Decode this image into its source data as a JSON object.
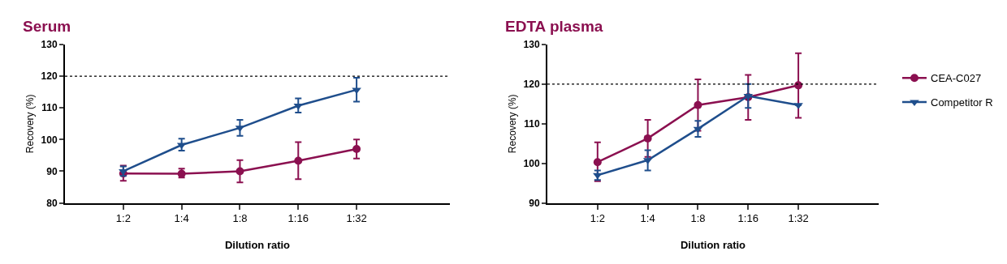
{
  "chart_data": [
    {
      "type": "line",
      "title": "Serum",
      "xlabel": "Dilution ratio",
      "ylabel": "Recovery (%)",
      "categories": [
        "1:2",
        "1:4",
        "1:8",
        "1:16",
        "1:32"
      ],
      "ylim": [
        80,
        130
      ],
      "yticks": [
        80,
        90,
        100,
        110,
        120,
        130
      ],
      "grid": false,
      "legend": false,
      "line_style": "solid",
      "ref_lines": [
        {
          "axis": "y",
          "value": 120,
          "color": "#000000",
          "line_style": "dotted"
        }
      ],
      "series": [
        {
          "color": "#8b1050",
          "marker": "circle",
          "values": [
            89.3,
            89.2,
            90.0,
            93.3,
            97.0
          ],
          "errors": [
            [
              87.0,
              91.8
            ],
            [
              88.0,
              90.8
            ],
            [
              86.5,
              93.5
            ],
            [
              87.5,
              99.2
            ],
            [
              94.0,
              100.0
            ]
          ]
        },
        {
          "color": "#1f4e8c",
          "marker": "triangle",
          "values": [
            90.0,
            98.3,
            103.7,
            110.7,
            115.7
          ],
          "errors": [
            [
              88.5,
              91.5
            ],
            [
              96.5,
              100.3
            ],
            [
              101.2,
              106.2
            ],
            [
              108.5,
              113.0
            ],
            [
              112.0,
              119.5
            ]
          ]
        }
      ]
    },
    {
      "type": "line",
      "title": "EDTA plasma",
      "xlabel": "Dilution ratio",
      "ylabel": "Recovery (%)",
      "categories": [
        "1:2",
        "1:4",
        "1:8",
        "1:16",
        "1:32"
      ],
      "ylim": [
        90,
        130
      ],
      "yticks": [
        90,
        100,
        110,
        120,
        130
      ],
      "grid": false,
      "legend": "right",
      "line_style": "solid",
      "ref_lines": [
        {
          "axis": "y",
          "value": 120,
          "color": "#000000",
          "line_style": "dotted"
        }
      ],
      "series": [
        {
          "name": "CEA-C027",
          "color": "#8b1050",
          "marker": "circle",
          "values": [
            100.3,
            106.3,
            114.7,
            116.7,
            119.7
          ],
          "errors": [
            [
              95.5,
              105.3
            ],
            [
              101.6,
              111.0
            ],
            [
              108.2,
              121.2
            ],
            [
              111.0,
              122.3
            ],
            [
              111.5,
              127.8
            ]
          ]
        },
        {
          "name": "Competitor R",
          "color": "#1f4e8c",
          "marker": "triangle",
          "values": [
            97.0,
            100.8,
            108.7,
            117.0,
            114.7
          ],
          "errors": [
            [
              95.8,
              98.2
            ],
            [
              98.2,
              103.3
            ],
            [
              106.7,
              110.7
            ],
            [
              114.0,
              120.0
            ],
            null
          ]
        }
      ]
    }
  ]
}
